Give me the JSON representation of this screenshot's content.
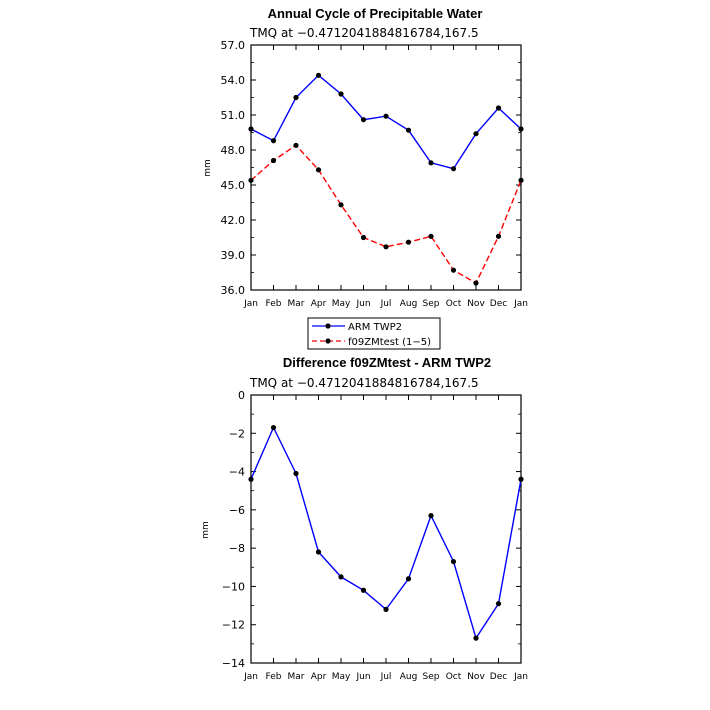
{
  "chart_data": [
    {
      "type": "line",
      "title": "Annual Cycle of Precipitable Water",
      "subtitle": "TMQ at −0.4712041884816784,167.5",
      "ylabel": "mm",
      "xlabel": "",
      "categories": [
        "Jan",
        "Feb",
        "Mar",
        "Apr",
        "May",
        "Jun",
        "Jul",
        "Aug",
        "Sep",
        "Oct",
        "Nov",
        "Dec",
        "Jan"
      ],
      "ylim": [
        36.0,
        57.0
      ],
      "yticks": [
        "36.0",
        "39.0",
        "42.0",
        "45.0",
        "48.0",
        "51.0",
        "54.0",
        "57.0"
      ],
      "ytick_values": [
        36,
        39,
        42,
        45,
        48,
        51,
        54,
        57
      ],
      "series": [
        {
          "name": "ARM TWP2",
          "color": "#0000ff",
          "dash": "solid",
          "values": [
            49.8,
            48.8,
            52.5,
            54.4,
            52.8,
            50.6,
            50.9,
            49.7,
            46.9,
            46.4,
            49.4,
            51.6,
            49.8
          ]
        },
        {
          "name": "f09ZMtest (1−5)",
          "color": "#ff0000",
          "dash": "dashed",
          "values": [
            45.4,
            47.1,
            48.4,
            46.3,
            43.3,
            40.5,
            39.7,
            40.1,
            40.6,
            37.7,
            36.6,
            40.6,
            45.4
          ]
        }
      ],
      "legend_position": "below"
    },
    {
      "type": "line",
      "title": "Difference f09ZMtest - ARM TWP2",
      "subtitle": "TMQ at −0.4712041884816784,167.5",
      "ylabel": "mm",
      "xlabel": "",
      "categories": [
        "Jan",
        "Feb",
        "Mar",
        "Apr",
        "May",
        "Jun",
        "Jul",
        "Aug",
        "Sep",
        "Oct",
        "Nov",
        "Dec",
        "Jan"
      ],
      "ylim": [
        -14,
        0
      ],
      "yticks": [
        "0",
        "−2",
        "−4",
        "−6",
        "−8",
        "−10",
        "−12",
        "−14"
      ],
      "ytick_values": [
        0,
        -2,
        -4,
        -6,
        -8,
        -10,
        -12,
        -14
      ],
      "series": [
        {
          "name": "",
          "color": "#0000ff",
          "dash": "solid",
          "values": [
            -4.4,
            -1.7,
            -4.1,
            -8.2,
            -9.5,
            -10.2,
            -11.2,
            -9.6,
            -6.3,
            -8.7,
            -12.7,
            -10.9,
            -4.4
          ]
        }
      ]
    }
  ]
}
